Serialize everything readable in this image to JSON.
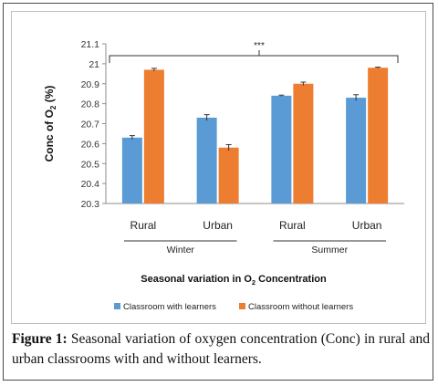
{
  "chart_data": {
    "type": "bar",
    "ylabel_main": "Conc of O",
    "ylabel_sub": "2",
    "ylabel_tail": " (%)",
    "ylim": [
      20.3,
      21.1
    ],
    "yticks": [
      "20.3",
      "20.4",
      "20.5",
      "20.6",
      "20.7",
      "20.8",
      "20.9",
      "21",
      "21.1"
    ],
    "grid": false,
    "categories": [
      "Rural",
      "Urban",
      "Rural",
      "Urban"
    ],
    "groups": [
      {
        "label": "Winter",
        "span": [
          0,
          1
        ]
      },
      {
        "label": "Summer",
        "span": [
          2,
          3
        ]
      }
    ],
    "series": [
      {
        "name": "Classroom with learners",
        "color": "#5b9bd5",
        "values": [
          20.63,
          20.73,
          20.84,
          20.83
        ],
        "errors": [
          0.01,
          0.015,
          0.003,
          0.015
        ]
      },
      {
        "name": "Classroom without learners",
        "color": "#ed7d31",
        "values": [
          20.97,
          20.58,
          20.9,
          20.98
        ],
        "errors": [
          0.007,
          0.015,
          0.008,
          0.003
        ]
      }
    ],
    "significance": "***",
    "xtitle_main": "Seasonal variation in O",
    "xtitle_sub": "2",
    "xtitle_tail": " Concentration",
    "legend_position": "bottom"
  },
  "caption": {
    "label": "Figure 1:",
    "text": " Seasonal variation of oxygen concentration (Conc) in rural and urban classrooms with and without learners."
  }
}
